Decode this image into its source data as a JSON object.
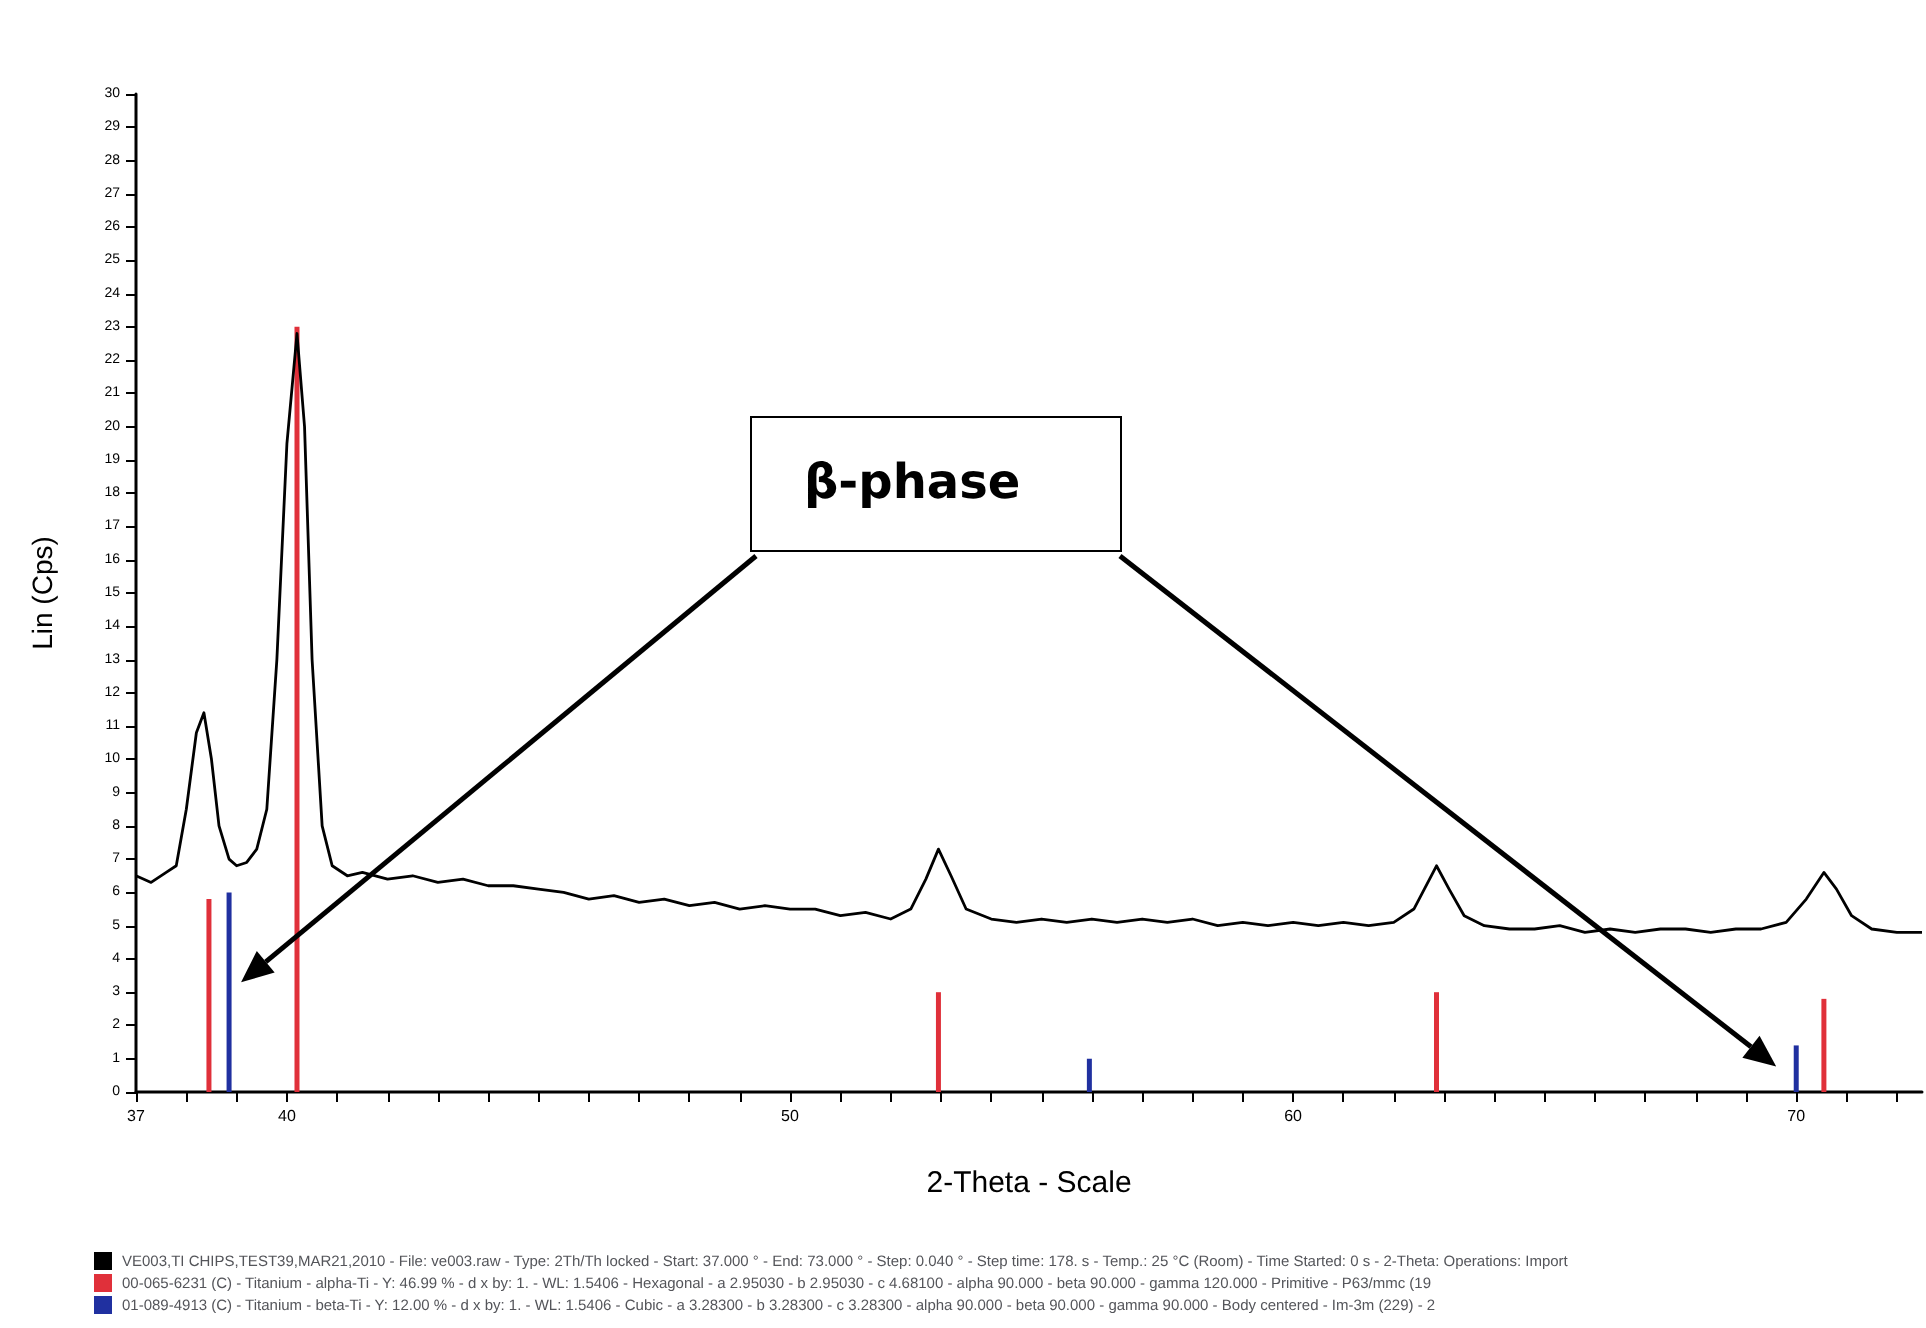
{
  "chart_data": {
    "type": "line",
    "xlabel": "2-Theta - Scale",
    "ylabel": "Lin (Cps)",
    "xlim": [
      37,
      72.5
    ],
    "xticks": [
      37,
      {
        "value": 38,
        "label": null
      },
      {
        "value": 39,
        "label": null
      },
      40,
      {
        "value": 41,
        "label": null
      },
      {
        "value": 42,
        "label": null
      },
      {
        "value": 43,
        "label": null
      },
      {
        "value": 44,
        "label": null
      },
      {
        "value": 45,
        "label": null
      },
      {
        "value": 46,
        "label": null
      },
      {
        "value": 47,
        "label": null
      },
      {
        "value": 48,
        "label": null
      },
      {
        "value": 49,
        "label": null
      },
      50,
      {
        "value": 51,
        "label": null
      },
      {
        "value": 52,
        "label": null
      },
      {
        "value": 53,
        "label": null
      },
      {
        "value": 54,
        "label": null
      },
      {
        "value": 55,
        "label": null
      },
      {
        "value": 56,
        "label": null
      },
      {
        "value": 57,
        "label": null
      },
      {
        "value": 58,
        "label": null
      },
      {
        "value": 59,
        "label": null
      },
      60,
      {
        "value": 61,
        "label": null
      },
      {
        "value": 62,
        "label": null
      },
      {
        "value": 63,
        "label": null
      },
      {
        "value": 64,
        "label": null
      },
      {
        "value": 65,
        "label": null
      },
      {
        "value": 66,
        "label": null
      },
      {
        "value": 67,
        "label": null
      },
      {
        "value": 68,
        "label": null
      },
      {
        "value": 69,
        "label": null
      },
      70,
      {
        "value": 71,
        "label": null
      },
      {
        "value": 72,
        "label": null
      }
    ],
    "ylim": [
      0,
      30
    ],
    "yticks": [
      0,
      1,
      2,
      3,
      4,
      5,
      6,
      7,
      8,
      9,
      10,
      11,
      12,
      13,
      14,
      15,
      16,
      17,
      18,
      19,
      20,
      21,
      22,
      23,
      24,
      25,
      26,
      27,
      28,
      29,
      30
    ],
    "grid": false,
    "marker": "none",
    "line_style": "solid",
    "legend": "bottom left",
    "series": [
      {
        "name": "VE003,TI CHIPS,TEST39,MAR21,2010 - File: ve003.raw - Type: 2Th/Th locked - Start: 37.000 ° - End: 73.000 ° - Step: 0.040 ° - Step time: 178. s - Temp.: 25 °C (Room) - Time Started: 0 s - 2-Theta: Operations: Import",
        "color": "#000000",
        "x": [
          37.0,
          37.3,
          37.6,
          37.8,
          38.0,
          38.2,
          38.35,
          38.5,
          38.65,
          38.85,
          39.0,
          39.2,
          39.4,
          39.6,
          39.8,
          40.0,
          40.2,
          40.35,
          40.5,
          40.7,
          40.9,
          41.2,
          41.5,
          42.0,
          42.5,
          43.0,
          43.5,
          44.0,
          44.5,
          45.0,
          45.5,
          46.0,
          46.5,
          47.0,
          47.5,
          48.0,
          48.5,
          49.0,
          49.5,
          50.0,
          50.5,
          51.0,
          51.5,
          52.0,
          52.4,
          52.7,
          52.95,
          53.2,
          53.5,
          54.0,
          54.5,
          55.0,
          55.5,
          56.0,
          56.5,
          57.0,
          57.5,
          58.0,
          58.5,
          59.0,
          59.5,
          60.0,
          60.5,
          61.0,
          61.5,
          62.0,
          62.4,
          62.85,
          63.1,
          63.4,
          63.8,
          64.3,
          64.8,
          65.3,
          65.8,
          66.3,
          66.8,
          67.3,
          67.8,
          68.3,
          68.8,
          69.3,
          69.8,
          70.2,
          70.55,
          70.8,
          71.1,
          71.5,
          72.0,
          72.5
        ],
        "values": [
          6.5,
          6.3,
          6.6,
          6.8,
          8.5,
          10.8,
          11.4,
          10.0,
          8.0,
          7.0,
          6.8,
          6.9,
          7.3,
          8.5,
          13.0,
          19.5,
          22.8,
          20.0,
          13.0,
          8.0,
          6.8,
          6.5,
          6.6,
          6.4,
          6.5,
          6.3,
          6.4,
          6.2,
          6.2,
          6.1,
          6.0,
          5.8,
          5.9,
          5.7,
          5.8,
          5.6,
          5.7,
          5.5,
          5.6,
          5.5,
          5.5,
          5.3,
          5.4,
          5.2,
          5.5,
          6.4,
          7.3,
          6.5,
          5.5,
          5.2,
          5.1,
          5.2,
          5.1,
          5.2,
          5.1,
          5.2,
          5.1,
          5.2,
          5.0,
          5.1,
          5.0,
          5.1,
          5.0,
          5.1,
          5.0,
          5.1,
          5.5,
          6.8,
          6.1,
          5.3,
          5.0,
          4.9,
          4.9,
          5.0,
          4.8,
          4.9,
          4.8,
          4.9,
          4.9,
          4.8,
          4.9,
          4.9,
          5.1,
          5.8,
          6.6,
          6.1,
          5.3,
          4.9,
          4.8,
          4.8
        ]
      },
      {
        "type": "bar",
        "name": "00-065-6231 (C) - Titanium - alpha-Ti - Y: 46.99 % - d x by: 1. - WL: 1.5406 - Hexagonal - a 2.95030 - b 2.95030 - c 4.68100 - alpha 90.000 - beta 90.000 - gamma 120.000 - Primitive - P63/mmc (19",
        "color": "#e0303a",
        "x": [
          38.45,
          40.2,
          52.95,
          62.85,
          70.55
        ],
        "values": [
          5.8,
          23.0,
          3.0,
          3.0,
          2.8
        ]
      },
      {
        "type": "bar",
        "name": "01-089-4913 (C) - Titanium - beta-Ti - Y: 12.00 % - d x by: 1. - WL: 1.5406 - Cubic - a 3.28300 - b 3.28300 - c 3.28300 - alpha 90.000 - beta 90.000 - gamma 90.000 - Body centered - Im-3m (229) - 2",
        "color": "#2030a0",
        "x": [
          38.85,
          55.95,
          70.0
        ],
        "values": [
          6.0,
          1.0,
          1.4
        ]
      }
    ],
    "annotations": [
      "β-phase"
    ]
  }
}
